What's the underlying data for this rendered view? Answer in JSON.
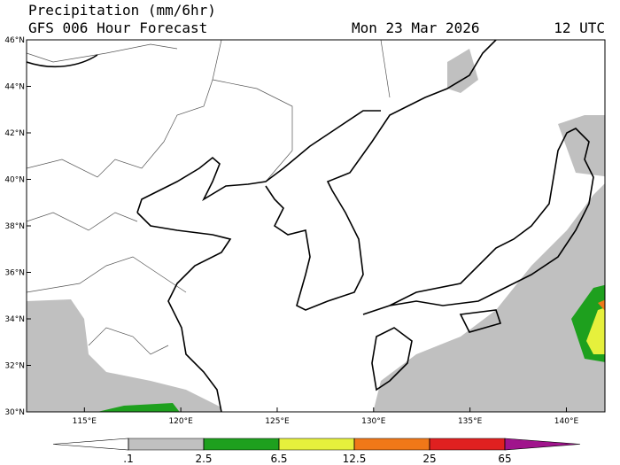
{
  "header": {
    "title": "Precipitation (mm/6hr)",
    "subtitle": "GFS 006 Hour Forecast",
    "date": "Mon 23 Mar 2026",
    "time": "12 UTC"
  },
  "map": {
    "xlim": [
      112,
      142
    ],
    "ylim": [
      30,
      46
    ],
    "lon_ticks": [
      {
        "value": 115,
        "label": "115°E"
      },
      {
        "value": 120,
        "label": "120°E"
      },
      {
        "value": 125,
        "label": "125°E"
      },
      {
        "value": 130,
        "label": "130°E"
      },
      {
        "value": 135,
        "label": "135°E"
      },
      {
        "value": 140,
        "label": "140°E"
      }
    ],
    "lat_ticks": [
      {
        "value": 30,
        "label": "30°N"
      },
      {
        "value": 32,
        "label": "32°N"
      },
      {
        "value": 34,
        "label": "34°N"
      },
      {
        "value": 36,
        "label": "36°N"
      },
      {
        "value": 38,
        "label": "38°N"
      },
      {
        "value": 40,
        "label": "40°N"
      },
      {
        "value": 42,
        "label": "42°N"
      },
      {
        "value": 44,
        "label": "44°N"
      },
      {
        "value": 46,
        "label": "46°N"
      }
    ]
  },
  "colorbar": {
    "bounds": [
      {
        "value": 0.1,
        "label": ".1"
      },
      2.5,
      6.5,
      12.5,
      25,
      65
    ],
    "colors": [
      "#ffffff",
      "#c0c0c0",
      "#1ea01e",
      "#e6f03c",
      "#f07818",
      "#e02020",
      "#a0148c"
    ]
  }
}
